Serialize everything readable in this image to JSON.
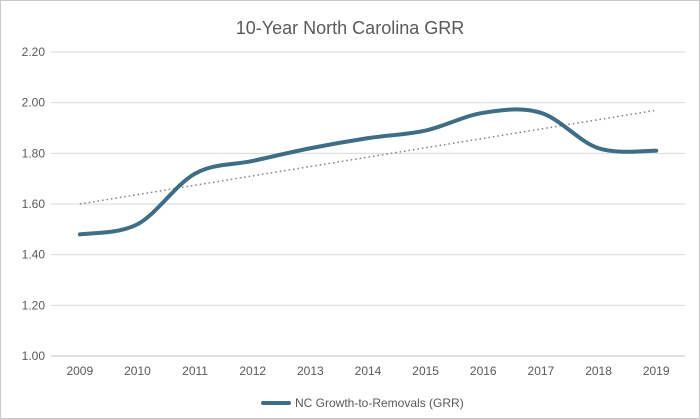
{
  "chart_data": {
    "type": "line",
    "title": "10-Year North Carolina GRR",
    "xlabel": "",
    "ylabel": "",
    "categories": [
      "2009",
      "2010",
      "2011",
      "2012",
      "2013",
      "2014",
      "2015",
      "2016",
      "2017",
      "2018",
      "2019"
    ],
    "series": [
      {
        "name": "NC Growth-to-Removals (GRR)",
        "color": "#3e6e85",
        "smooth": true,
        "values": [
          1.48,
          1.52,
          1.72,
          1.77,
          1.82,
          1.86,
          1.89,
          1.96,
          1.96,
          1.82,
          1.81
        ]
      }
    ],
    "trendline": {
      "type": "linear",
      "style": "dotted",
      "color": "#7f7f7f",
      "start": 1.6,
      "end": 1.97
    },
    "y_ticks": [
      "1.00",
      "1.20",
      "1.40",
      "1.60",
      "1.80",
      "2.00",
      "2.20"
    ],
    "ylim": [
      1.0,
      2.2
    ],
    "grid": true,
    "legend_position": "bottom"
  }
}
